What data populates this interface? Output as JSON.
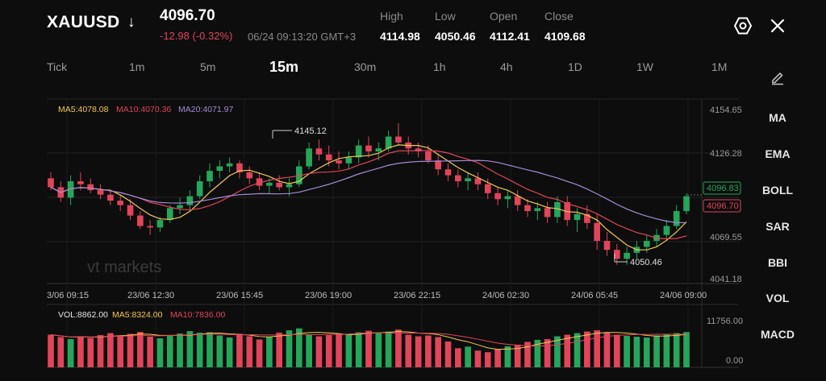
{
  "header": {
    "symbol": "XAUUSD",
    "direction_icon": "arrow-down-icon",
    "price": "4096.70",
    "change": "-12.98 (-0.32%)",
    "datetime": "06/24 09:13:20 GMT+3",
    "stats": [
      {
        "label": "High",
        "value": "4114.98"
      },
      {
        "label": "Low",
        "value": "4050.46"
      },
      {
        "label": "Open",
        "value": "4112.41"
      },
      {
        "label": "Close",
        "value": "4109.68"
      }
    ],
    "settings_icon": "settings-icon",
    "close_icon": "close-icon"
  },
  "timeframes": [
    {
      "label": "Tick",
      "active": false
    },
    {
      "label": "1m",
      "active": false
    },
    {
      "label": "5m",
      "active": false
    },
    {
      "label": "15m",
      "active": true
    },
    {
      "label": "30m",
      "active": false
    },
    {
      "label": "1h",
      "active": false
    },
    {
      "label": "4h",
      "active": false
    },
    {
      "label": "1D",
      "active": false
    },
    {
      "label": "1W",
      "active": false
    },
    {
      "label": "1M",
      "active": false
    }
  ],
  "indicators": {
    "draw_icon": "pencil-icon",
    "items": [
      "MA",
      "EMA",
      "BOLL",
      "SAR",
      "BBI",
      "VOL",
      "MACD"
    ]
  },
  "ma_legend": {
    "ma5": "MA5:4078.08",
    "ma10": "MA10:4070.36",
    "ma20": "MA20:4071.97"
  },
  "vol_legend": {
    "vol": "VOL:8862.00",
    "ma5": "MA5:8324.00",
    "ma10": "MA10:7836.00"
  },
  "watermark": "vt markets",
  "colors": {
    "up": "#26a65b",
    "down": "#e0455a",
    "ma5": "#f2c94c",
    "ma10": "#e0455a",
    "ma20": "#a48bd6",
    "background": "#0d0d0d"
  },
  "chart_data": {
    "type": "candlestick",
    "y_axis_ticks": [
      "4154.65",
      "4126.28",
      "4069.55",
      "4041.18"
    ],
    "price_range": [
      4041.18,
      4154.65
    ],
    "x_axis_ticks": [
      "3/06 09:15",
      "23/06 12:30",
      "23/06 15:45",
      "23/06 19:00",
      "23/06 22:15",
      "24/06 02:30",
      "24/06 05:45",
      "24/06 09:00"
    ],
    "high_annotation": "4145.12",
    "low_annotation": "4050.46",
    "bid_label": "4096.83",
    "ask_label": "4096.70",
    "candles_ohlc": [
      [
        4108,
        4112,
        4100,
        4102
      ],
      [
        4102,
        4106,
        4092,
        4095
      ],
      [
        4095,
        4110,
        4090,
        4106
      ],
      [
        4106,
        4112,
        4100,
        4104
      ],
      [
        4104,
        4108,
        4098,
        4100
      ],
      [
        4100,
        4104,
        4094,
        4097
      ],
      [
        4097,
        4100,
        4090,
        4093
      ],
      [
        4093,
        4097,
        4086,
        4090
      ],
      [
        4090,
        4094,
        4080,
        4083
      ],
      [
        4083,
        4086,
        4074,
        4076
      ],
      [
        4076,
        4080,
        4070,
        4075
      ],
      [
        4075,
        4082,
        4072,
        4080
      ],
      [
        4080,
        4090,
        4078,
        4088
      ],
      [
        4088,
        4095,
        4084,
        4090
      ],
      [
        4090,
        4100,
        4086,
        4096
      ],
      [
        4096,
        4110,
        4094,
        4106
      ],
      [
        4106,
        4118,
        4102,
        4113
      ],
      [
        4113,
        4120,
        4108,
        4116
      ],
      [
        4116,
        4122,
        4112,
        4118
      ],
      [
        4118,
        4120,
        4108,
        4112
      ],
      [
        4112,
        4116,
        4104,
        4108
      ],
      [
        4108,
        4112,
        4100,
        4103
      ],
      [
        4103,
        4108,
        4098,
        4105
      ],
      [
        4105,
        4110,
        4100,
        4102
      ],
      [
        4102,
        4108,
        4096,
        4104
      ],
      [
        4104,
        4120,
        4102,
        4116
      ],
      [
        4116,
        4132,
        4114,
        4128
      ],
      [
        4128,
        4134,
        4120,
        4124
      ],
      [
        4124,
        4130,
        4116,
        4120
      ],
      [
        4120,
        4126,
        4114,
        4118
      ],
      [
        4118,
        4126,
        4114,
        4122
      ],
      [
        4122,
        4134,
        4118,
        4130
      ],
      [
        4130,
        4136,
        4122,
        4126
      ],
      [
        4126,
        4132,
        4120,
        4128
      ],
      [
        4128,
        4140,
        4126,
        4136
      ],
      [
        4136,
        4145,
        4130,
        4132
      ],
      [
        4132,
        4136,
        4124,
        4128
      ],
      [
        4128,
        4132,
        4122,
        4126
      ],
      [
        4126,
        4130,
        4118,
        4120
      ],
      [
        4120,
        4124,
        4110,
        4114
      ],
      [
        4114,
        4118,
        4106,
        4110
      ],
      [
        4110,
        4114,
        4102,
        4106
      ],
      [
        4106,
        4112,
        4100,
        4108
      ],
      [
        4108,
        4112,
        4100,
        4104
      ],
      [
        4104,
        4108,
        4094,
        4098
      ],
      [
        4098,
        4102,
        4090,
        4094
      ],
      [
        4094,
        4100,
        4088,
        4096
      ],
      [
        4096,
        4100,
        4086,
        4090
      ],
      [
        4090,
        4094,
        4082,
        4086
      ],
      [
        4086,
        4092,
        4080,
        4088
      ],
      [
        4088,
        4092,
        4078,
        4082
      ],
      [
        4082,
        4096,
        4078,
        4092
      ],
      [
        4092,
        4096,
        4076,
        4080
      ],
      [
        4080,
        4088,
        4072,
        4084
      ],
      [
        4084,
        4090,
        4074,
        4078
      ],
      [
        4078,
        4084,
        4060,
        4066
      ],
      [
        4066,
        4072,
        4056,
        4060
      ],
      [
        4060,
        4064,
        4050,
        4054
      ],
      [
        4054,
        4062,
        4050,
        4058
      ],
      [
        4058,
        4066,
        4054,
        4062
      ],
      [
        4062,
        4070,
        4058,
        4066
      ],
      [
        4066,
        4074,
        4062,
        4070
      ],
      [
        4070,
        4080,
        4066,
        4076
      ],
      [
        4076,
        4090,
        4074,
        4086
      ],
      [
        4086,
        4098,
        4084,
        4096
      ]
    ],
    "volume": [
      8200,
      7600,
      7100,
      7800,
      7400,
      8100,
      8600,
      7900,
      8400,
      8900,
      7700,
      7300,
      7900,
      8500,
      9100,
      8700,
      8800,
      8000,
      7500,
      8400,
      7800,
      7000,
      7600,
      8700,
      9300,
      9800,
      8300,
      7800,
      8100,
      8500,
      8400,
      8800,
      9200,
      8600,
      9000,
      9500,
      8200,
      7800,
      8000,
      7600,
      6500,
      4800,
      5200,
      4200,
      3800,
      4600,
      5300,
      5700,
      6400,
      6900,
      7100,
      7800,
      8200,
      8600,
      9000,
      9300,
      8700,
      8200,
      7900,
      7700,
      7500,
      8000,
      8300,
      8600,
      8862
    ],
    "volume_axis": [
      "11756.00",
      "0.00"
    ]
  }
}
